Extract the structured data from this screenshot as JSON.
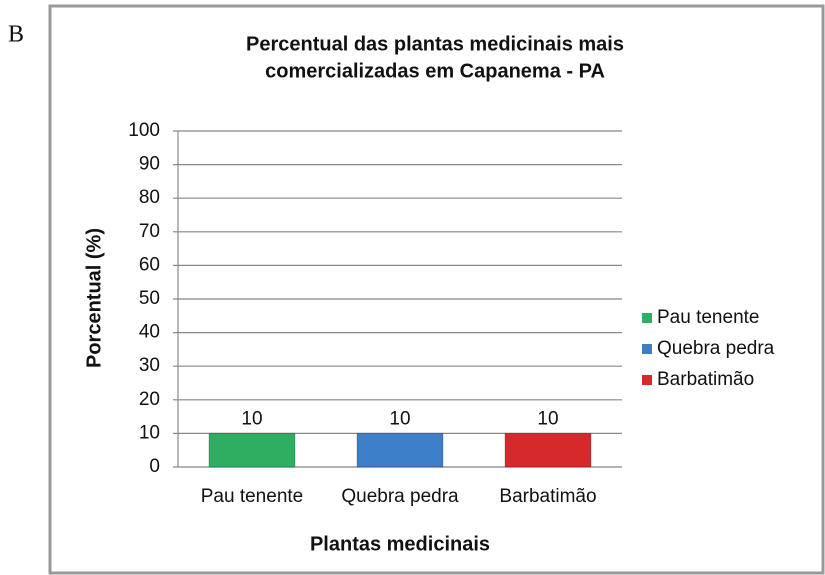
{
  "panel_label": "B",
  "chart_data": {
    "type": "bar",
    "title": [
      "Percentual das plantas medicinais mais",
      "comercializadas em Capanema - PA"
    ],
    "x_label": "Plantas medicinais",
    "y_label": "Porcentual (%)",
    "categories": [
      "Pau tenente",
      "Quebra pedra",
      "Barbatimão"
    ],
    "values": [
      10,
      10,
      10
    ],
    "colors": [
      "#2fae62",
      "#3d7ec9",
      "#d6292b"
    ],
    "ylim": [
      0,
      100
    ],
    "yticks": [
      0,
      10,
      20,
      30,
      40,
      50,
      60,
      70,
      80,
      90,
      100
    ],
    "grid": true,
    "legend": "right"
  }
}
